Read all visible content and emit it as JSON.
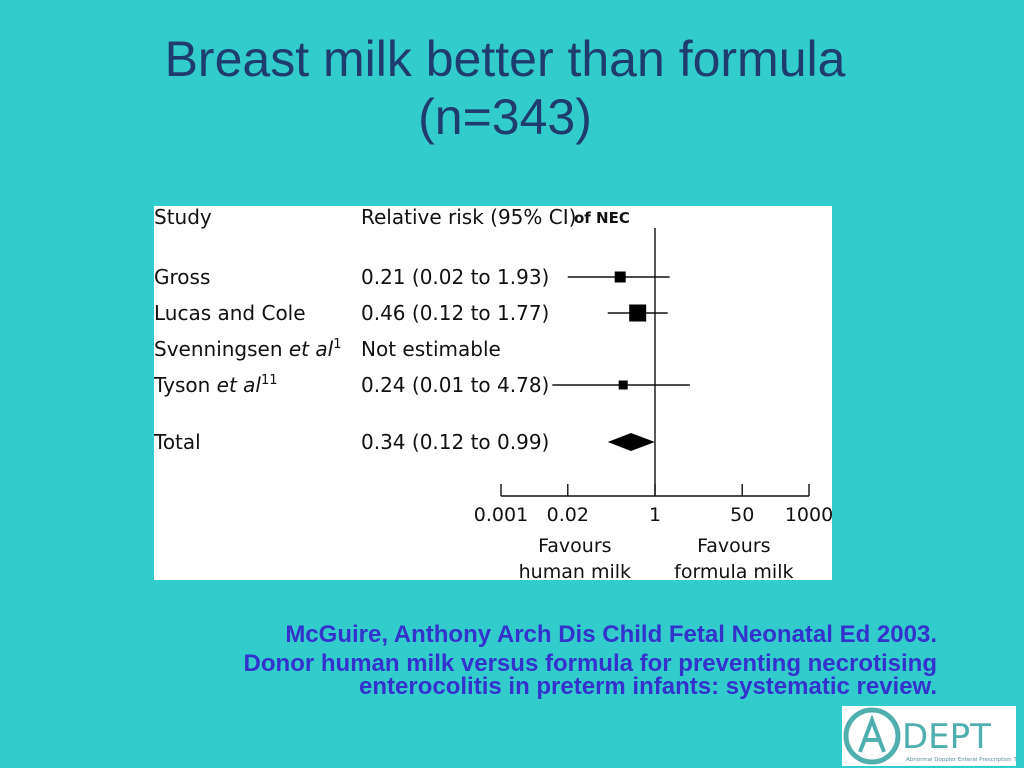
{
  "slide": {
    "title_line1": "Breast milk better than formula",
    "title_line2": "(n=343)"
  },
  "chart_data": {
    "type": "forest",
    "outcome_label": "of NEC",
    "column_headers": {
      "study": "Study",
      "effect": "Relative risk (95% CI)"
    },
    "scale": "log",
    "xlim": [
      0.001,
      1000
    ],
    "x_ticks": [
      0.001,
      0.02,
      1,
      50,
      1000
    ],
    "x_tick_labels": [
      "0.001",
      "0.02",
      "1",
      "50",
      "1000"
    ],
    "reference_line": 1,
    "favours_left": [
      "Favours",
      "human milk"
    ],
    "favours_right": [
      "Favours",
      "formula milk"
    ],
    "studies": [
      {
        "name": "Gross",
        "superscript": "",
        "ci_text": "0.21 (0.02 to 1.93)",
        "rr": 0.21,
        "lo": 0.02,
        "hi": 1.93,
        "weight": "small"
      },
      {
        "name": "Lucas and Cole",
        "superscript": "",
        "ci_text": "0.46 (0.12 to 1.77)",
        "rr": 0.46,
        "lo": 0.12,
        "hi": 1.77,
        "weight": "large"
      },
      {
        "name": "Svenningsen",
        "italic_suffix": "et al",
        "superscript": "1",
        "ci_text": "Not estimable",
        "rr": null,
        "lo": null,
        "hi": null,
        "weight": "none"
      },
      {
        "name": "Tyson",
        "italic_suffix": "et al",
        "superscript": "11",
        "ci_text": "0.24 (0.01 to 4.78)",
        "rr": 0.24,
        "lo": 0.01,
        "hi": 4.78,
        "weight": "smallest"
      }
    ],
    "total": {
      "name": "Total",
      "ci_text": "0.34 (0.12 to 0.99)",
      "rr": 0.34,
      "lo": 0.12,
      "hi": 0.99
    }
  },
  "citation": {
    "line1": "McGuire, Anthony Arch Dis Child Fetal Neonatal Ed 2003.",
    "line2": "Donor human milk versus formula for preventing necrotising",
    "line3": "enterocolitis in preterm infants: systematic review."
  },
  "logo": {
    "text": "DEPT",
    "tagline": "Abnormal Doppler Enteral Prescription Trial",
    "color": "#4FAFAE"
  }
}
